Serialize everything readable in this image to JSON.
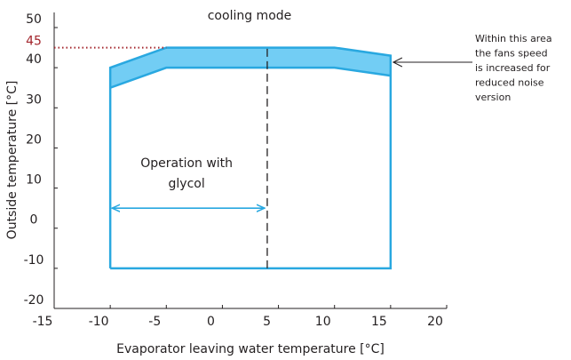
{
  "chart_data": {
    "type": "envelope",
    "title": "cooling mode",
    "x_label": "Evaporator leaving water temperature [°C]",
    "y_label": "Outside temperature [°C]",
    "xlim": [
      -15,
      20
    ],
    "ylim": [
      -20,
      50
    ],
    "xticks": [
      -15,
      -10,
      -5,
      0,
      5,
      10,
      15,
      20
    ],
    "yticks": [
      -20,
      -10,
      0,
      10,
      20,
      30,
      40,
      50
    ],
    "envelope": {
      "x": [
        -10,
        -10,
        -5,
        10,
        15,
        15,
        -10
      ],
      "values": [
        -10,
        40,
        45,
        45,
        43,
        -10,
        -10
      ],
      "color": "#29a8e0"
    },
    "band_lower": {
      "x": [
        -10,
        -5,
        10,
        15
      ],
      "values": [
        35,
        40,
        40,
        38
      ],
      "color": "#72cdf4"
    },
    "highlight": {
      "value": 45,
      "color": "#a3262d"
    },
    "glycol": {
      "text": [
        "Operation with",
        "glycol"
      ],
      "x_from": -10,
      "x_to": 4,
      "y": 5,
      "color": "#29a8e0"
    },
    "side_note": [
      "Within this area",
      "the fans speed",
      "is increased for",
      "reduced noise",
      "version"
    ]
  }
}
